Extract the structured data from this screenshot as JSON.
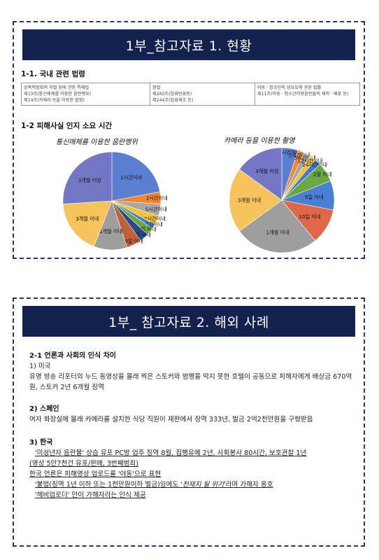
{
  "slide1": {
    "title": "1부_참고자료 1. 현황",
    "section_laws": "1-1. 국내 관련 법령",
    "laws_table": [
      [
        "성폭력범죄의 처벌 등에 관한 특례법",
        "형법",
        "아동ㆍ청소년의 성보호에 관한 법률"
      ],
      [
        "제13조(통신매체를 이용한 음란행위)",
        "제243조(음화반포등)",
        "제11조(아동ㆍ청소년이용음란물의 제작ㆍ배포 등)"
      ],
      [
        "제14조(카메라 등을 이용한 촬영)",
        "제244조(음화제조 등)",
        ""
      ]
    ],
    "section_time": "1-2 피해사실 인지 소요 시간"
  },
  "chart_data": [
    {
      "type": "pie",
      "title": "통신매체를 이용한 음란행위",
      "labels": [
        "1시간이내",
        "2시간이내",
        "5시간이내",
        "12시간이내",
        "24시간이내",
        "2일 이내",
        "5일 이내",
        "10일 이내",
        "1개월 이내",
        "3개월 이내",
        "3개월 이상"
      ],
      "values": [
        22,
        4,
        4,
        3,
        1.5,
        2.5,
        3,
        5,
        11,
        18,
        26
      ],
      "colors": [
        "#5b7fd0",
        "#f2862f",
        "#a8a8a8",
        "#f4c232",
        "#4a78c9",
        "#6aa843",
        "#2a4a8a",
        "#c0603a",
        "#9e9e9e",
        "#f6c35c",
        "#7477c4"
      ]
    },
    {
      "type": "pie",
      "title": "카메라 등을 이용한 촬영",
      "labels": [
        "1시간이내",
        "2시간이내",
        "5시간이내",
        "12시간이내",
        "24시간이내",
        "2일 이내",
        "5일 이내",
        "10일 이내",
        "1개월 이내",
        "3개월 이내",
        "3개월 이상"
      ],
      "values": [
        5,
        2,
        2,
        2,
        2,
        6,
        9,
        11,
        26,
        20,
        15
      ],
      "colors": [
        "#5b7fd0",
        "#f2862f",
        "#a8a8a8",
        "#f4c232",
        "#4a78c9",
        "#6aa843",
        "#4a7fd4",
        "#e0674a",
        "#9e9e9e",
        "#f6c35c",
        "#7477c4"
      ]
    }
  ],
  "slide2": {
    "title": "1부_ 참고자료 2. 해외 사례",
    "section": "2-1 언론과 사회의 인식 차이",
    "us_head": "1) 미국",
    "us_text": "유명 방송 리포터의 누드 동영상을 몰래 찍은 스토커와 범행을 막지 못한 호텔이 공동으로 피해자에게 배상금 670억 원, 스토커 2년 6개월 징역",
    "es_head": "2) 스페인",
    "es_text": "여자 화장실에 몰래 카메라를 설치한 식당 직원이 재판에서 징역 333년, 벌금 2억2천만원을 구형받음",
    "kr_head": "3) 한국",
    "kr_line1": "'미성년자 음란물' 상습 유포 PC방 업주 징역 8월, 집행유예 2년, 사회봉사 80시간, 보호관찰 1년",
    "kr_line2": "(영상 5만7천건 유포/판매, 3번째범죄)",
    "kr_line3": "한국 언론은 피해영상 업로드를 '야동'으로 표현",
    "kr_line4a": "'불법(징역 1년 이하 또는 1천만원이하 벌금)임에도 '",
    "kr_line4b": "천재지 될 위기",
    "kr_line4c": "'라며 가해자 옹호",
    "kr_line5": "'헤비업로더' 만이 가해자라는 인식 제공"
  }
}
